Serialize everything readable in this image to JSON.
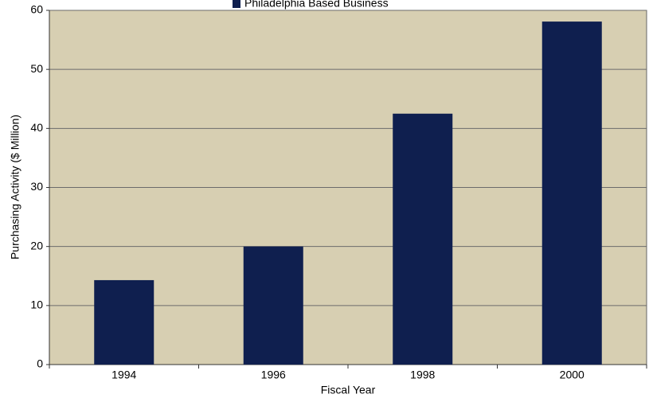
{
  "chart_data": {
    "type": "bar",
    "x_label": "Fiscal Year",
    "y_label": "Purchasing Activity ($ Million)",
    "categories": [
      "1994",
      "1996",
      "1998",
      "2000"
    ],
    "series": [
      {
        "name": "Philadelphia Based Business",
        "color": "#0f1f4f",
        "values": [
          14.3,
          20,
          42.5,
          58.1
        ]
      }
    ],
    "ylim": [
      0,
      60
    ],
    "yticks": [
      0,
      10,
      20,
      30,
      40,
      50,
      60
    ],
    "grid": true,
    "legend": "top",
    "background": "#d7cfb2"
  }
}
